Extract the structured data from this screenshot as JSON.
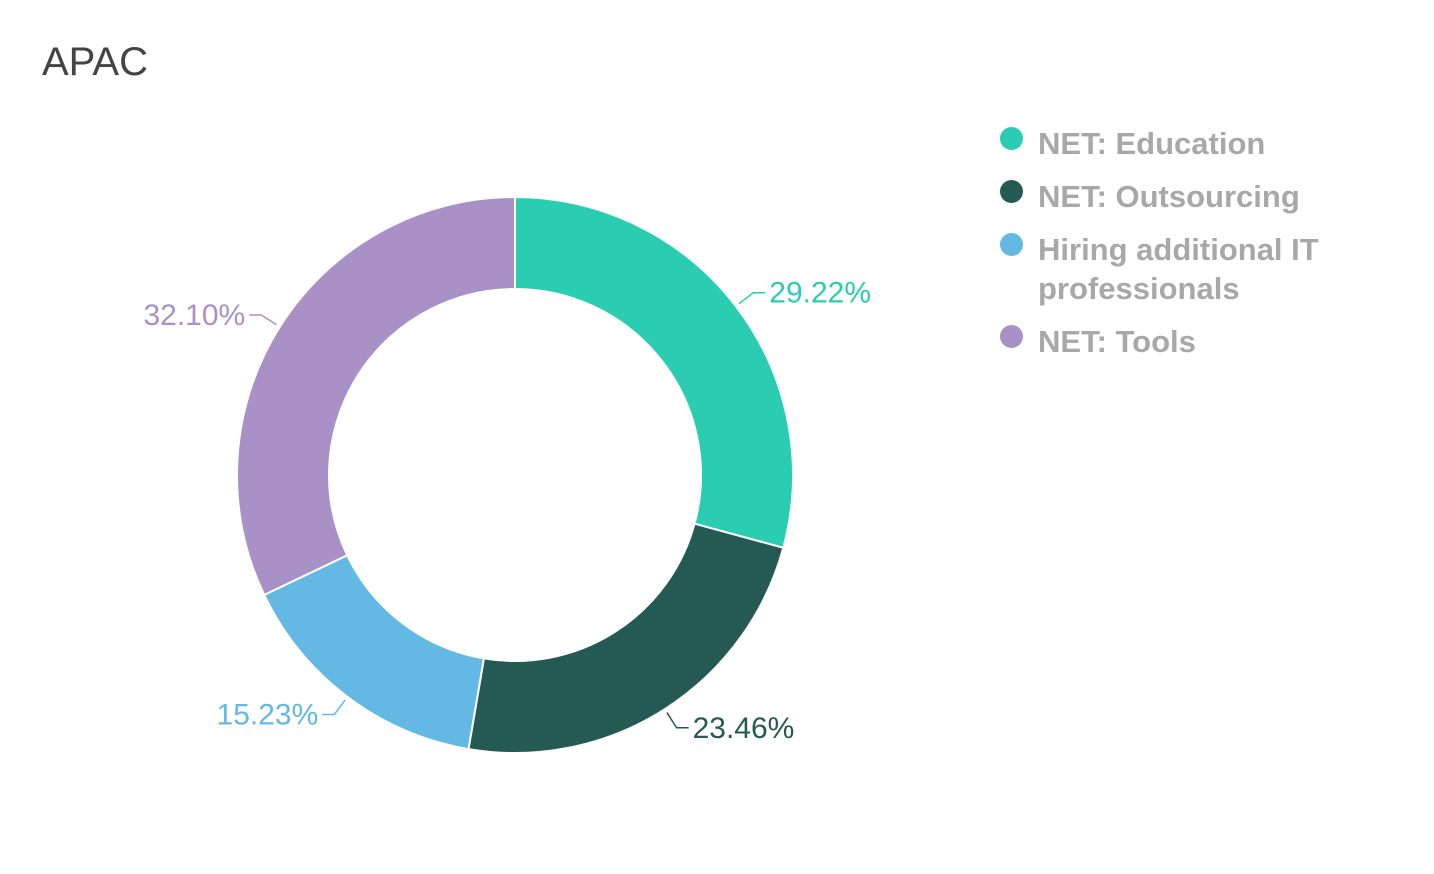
{
  "chart_data": {
    "type": "pie",
    "title": "APAC",
    "series": [
      {
        "name": "NET: Education",
        "value": 29.22,
        "label": "29.22%",
        "color": "#2bcdb2"
      },
      {
        "name": "NET: Outsourcing",
        "value": 23.46,
        "label": "23.46%",
        "color": "#255a54"
      },
      {
        "name": "Hiring additional IT professionals",
        "value": 15.23,
        "label": "15.23%",
        "color": "#63b8e4"
      },
      {
        "name": "NET: Tools",
        "value": 32.1,
        "label": "32.10%",
        "color": "#a991c7"
      }
    ],
    "legend_position": "right"
  }
}
